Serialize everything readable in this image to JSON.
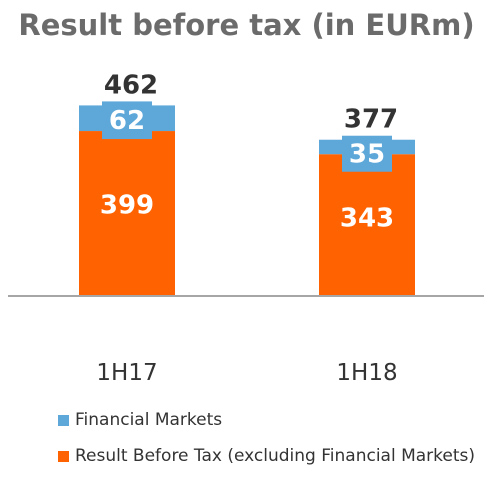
{
  "chart_data": {
    "type": "bar",
    "stacked": true,
    "title": "Result before tax (in EURm)",
    "categories": [
      "1H17",
      "1H18"
    ],
    "series": [
      {
        "name": "Result Before Tax (excluding Financial Markets)",
        "values": [
          399,
          343
        ],
        "color": "#ff6200"
      },
      {
        "name": "Financial Markets",
        "values": [
          62,
          35
        ],
        "color": "#5ea7d9"
      }
    ],
    "totals": [
      "462",
      "377"
    ],
    "segment_labels": [
      [
        "399",
        "343"
      ],
      [
        "62",
        "35"
      ]
    ],
    "legend": [
      {
        "label": "Financial Markets",
        "color": "#5ea7d9"
      },
      {
        "label": "Result Before Tax (excluding Financial Markets)",
        "color": "#ff6200"
      }
    ],
    "axis_color": "#a6a6a6",
    "label_color": "#ffffff",
    "total_color": "#333333",
    "tick_color": "#333333"
  }
}
